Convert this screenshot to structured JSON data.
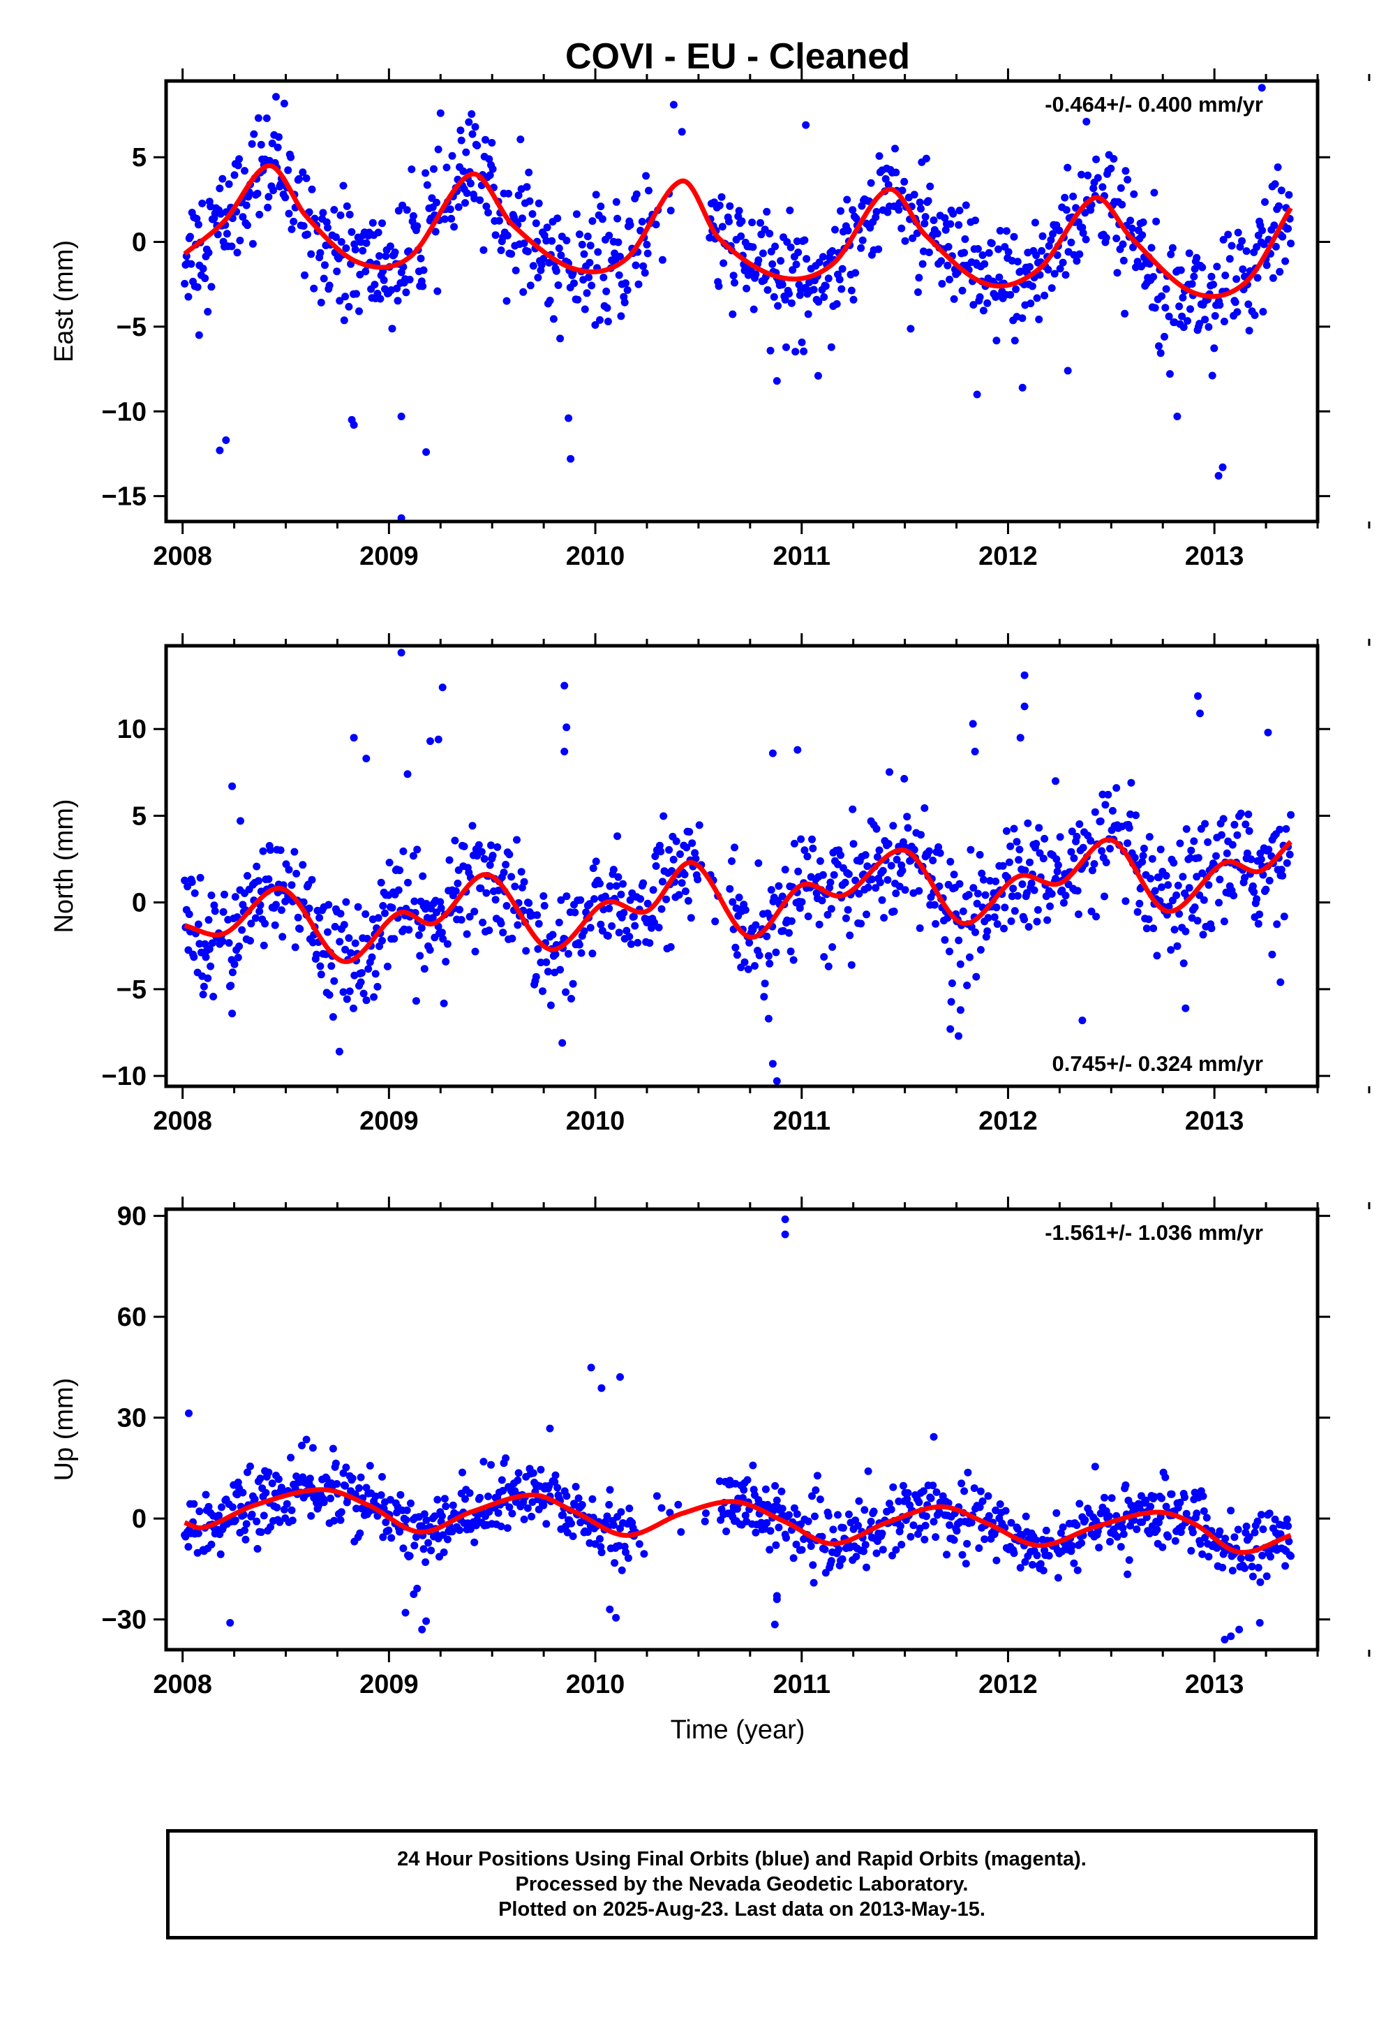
{
  "title": "COVI  - EU - Cleaned",
  "colors": {
    "points": "#0000ff",
    "fit": "#ff0000",
    "axes": "#000000"
  },
  "x_axis": {
    "label": "Time (year)",
    "range": [
      2007.92,
      2013.5
    ],
    "ticks": [
      2008,
      2009,
      2010,
      2011,
      2012,
      2013
    ]
  },
  "footer": {
    "line1": "24 Hour Positions Using Final Orbits (blue) and Rapid Orbits (magenta).",
    "line2": "Processed by the Nevada Geodetic Laboratory.",
    "line3": "Plotted on 2025-Aug-23. Last data on 2013-May-15."
  },
  "chart_data": [
    {
      "type": "scatter",
      "ylabel": "East (mm)",
      "ylim": [
        -16.5,
        9.5
      ],
      "yticks": [
        5,
        0,
        -5,
        -10,
        -15
      ],
      "rate_label": "-0.464+/- 0.400 mm/yr",
      "rate_label_position": "top-right",
      "time_range": [
        2008.01,
        2013.37
      ],
      "gap": [
        2010.28,
        2010.55
      ],
      "fit": {
        "mean": 0.8,
        "trend_mm_per_yr": -0.464,
        "knots": [
          [
            2008.0,
            -0.8
          ],
          [
            2008.2,
            1.2
          ],
          [
            2008.42,
            4.5
          ],
          [
            2008.6,
            1.5
          ],
          [
            2008.85,
            -1.2
          ],
          [
            2009.1,
            -0.9
          ],
          [
            2009.4,
            4.0
          ],
          [
            2009.6,
            1.0
          ],
          [
            2009.9,
            -1.6
          ],
          [
            2010.15,
            -1.0
          ],
          [
            2010.42,
            3.6
          ],
          [
            2010.6,
            0.2
          ],
          [
            2010.9,
            -2.1
          ],
          [
            2011.15,
            -1.3
          ],
          [
            2011.42,
            3.1
          ],
          [
            2011.6,
            0.4
          ],
          [
            2011.9,
            -2.5
          ],
          [
            2012.15,
            -1.6
          ],
          [
            2012.42,
            2.6
          ],
          [
            2012.6,
            0.2
          ],
          [
            2012.9,
            -3.0
          ],
          [
            2013.15,
            -2.4
          ],
          [
            2013.37,
            2.0
          ]
        ]
      },
      "noise_sd": 1.7,
      "outliers": [
        [
          2008.18,
          -12.3
        ],
        [
          2008.21,
          -11.7
        ],
        [
          2008.08,
          -5.5
        ],
        [
          2008.82,
          -10.5
        ],
        [
          2008.83,
          -10.8
        ],
        [
          2009.06,
          -16.3
        ],
        [
          2009.06,
          -10.3
        ],
        [
          2009.18,
          -12.4
        ],
        [
          2009.88,
          -12.8
        ],
        [
          2009.87,
          -10.4
        ],
        [
          2010.38,
          8.1
        ],
        [
          2010.42,
          6.5
        ],
        [
          2010.88,
          -8.2
        ],
        [
          2011.85,
          -9.0
        ],
        [
          2011.08,
          -7.9
        ],
        [
          2012.07,
          -8.6
        ],
        [
          2012.29,
          -7.6
        ],
        [
          2012.82,
          -10.3
        ],
        [
          2013.02,
          -13.8
        ],
        [
          2013.04,
          -13.3
        ],
        [
          2013.23,
          9.1
        ],
        [
          2012.38,
          7.1
        ],
        [
          2011.02,
          6.9
        ],
        [
          2009.25,
          7.6
        ]
      ]
    },
    {
      "type": "scatter",
      "ylabel": "North (mm)",
      "ylim": [
        -10.6,
        14.8
      ],
      "yticks": [
        10,
        5,
        0,
        -5,
        -10
      ],
      "rate_label": "0.745+/- 0.324 mm/yr",
      "rate_label_position": "bottom-right",
      "time_range": [
        2008.01,
        2013.37
      ],
      "gap": [
        2010.5,
        2010.66
      ],
      "fit": {
        "mean": 0.0,
        "trend_mm_per_yr": 0.745,
        "knots": [
          [
            2008.0,
            -1.3
          ],
          [
            2008.2,
            -1.8
          ],
          [
            2008.48,
            0.8
          ],
          [
            2008.78,
            -3.4
          ],
          [
            2009.05,
            -0.6
          ],
          [
            2009.22,
            -1.2
          ],
          [
            2009.48,
            1.6
          ],
          [
            2009.78,
            -2.7
          ],
          [
            2010.05,
            0.0
          ],
          [
            2010.25,
            -0.5
          ],
          [
            2010.47,
            2.3
          ],
          [
            2010.75,
            -2.0
          ],
          [
            2011.0,
            1.0
          ],
          [
            2011.2,
            0.4
          ],
          [
            2011.5,
            3.0
          ],
          [
            2011.78,
            -1.2
          ],
          [
            2012.05,
            1.5
          ],
          [
            2012.25,
            1.1
          ],
          [
            2012.5,
            3.6
          ],
          [
            2012.77,
            -0.5
          ],
          [
            2013.05,
            2.3
          ],
          [
            2013.22,
            1.8
          ],
          [
            2013.37,
            3.5
          ]
        ]
      },
      "noise_sd": 1.6,
      "outliers": [
        [
          2008.24,
          6.7
        ],
        [
          2008.28,
          4.7
        ],
        [
          2008.24,
          -6.4
        ],
        [
          2008.76,
          -8.6
        ],
        [
          2008.83,
          9.5
        ],
        [
          2008.89,
          8.3
        ],
        [
          2009.06,
          14.4
        ],
        [
          2009.09,
          7.4
        ],
        [
          2009.24,
          9.4
        ],
        [
          2009.26,
          12.4
        ],
        [
          2009.2,
          9.3
        ],
        [
          2009.85,
          12.5
        ],
        [
          2009.86,
          10.1
        ],
        [
          2009.85,
          8.7
        ],
        [
          2009.84,
          -8.1
        ],
        [
          2010.86,
          -9.3
        ],
        [
          2010.88,
          -10.3
        ],
        [
          2010.86,
          8.6
        ],
        [
          2010.98,
          8.8
        ],
        [
          2010.84,
          -6.7
        ],
        [
          2011.72,
          -7.3
        ],
        [
          2011.76,
          -7.7
        ],
        [
          2011.77,
          -6.2
        ],
        [
          2011.83,
          10.3
        ],
        [
          2011.84,
          8.7
        ],
        [
          2012.08,
          13.1
        ],
        [
          2012.08,
          11.3
        ],
        [
          2012.06,
          9.5
        ],
        [
          2012.36,
          -6.8
        ],
        [
          2012.86,
          -6.1
        ],
        [
          2012.92,
          11.9
        ],
        [
          2012.93,
          10.9
        ],
        [
          2013.26,
          9.8
        ],
        [
          2013.28,
          -3.0
        ],
        [
          2013.32,
          -4.6
        ],
        [
          2012.23,
          7.0
        ]
      ]
    },
    {
      "type": "scatter",
      "ylabel": "Up (mm)",
      "ylim": [
        -39,
        92
      ],
      "yticks": [
        90,
        60,
        30,
        0,
        -30
      ],
      "rate_label": "-1.561+/- 1.036 mm/yr",
      "rate_label_position": "top-right",
      "time_range": [
        2008.01,
        2013.37
      ],
      "gap": [
        2010.2,
        2010.6
      ],
      "fit": {
        "mean": 0.0,
        "trend_mm_per_yr": -1.561,
        "knots": [
          [
            2008.0,
            -1.0
          ],
          [
            2008.1,
            -2.7
          ],
          [
            2008.35,
            4.0
          ],
          [
            2008.68,
            8.6
          ],
          [
            2008.9,
            4.0
          ],
          [
            2009.15,
            -4.0
          ],
          [
            2009.4,
            2.0
          ],
          [
            2009.7,
            7.0
          ],
          [
            2009.9,
            2.0
          ],
          [
            2010.15,
            -5.0
          ],
          [
            2010.42,
            1.5
          ],
          [
            2010.68,
            5.0
          ],
          [
            2010.92,
            -1.0
          ],
          [
            2011.15,
            -7.5
          ],
          [
            2011.42,
            -1.0
          ],
          [
            2011.68,
            3.5
          ],
          [
            2011.9,
            -1.5
          ],
          [
            2012.15,
            -8.0
          ],
          [
            2012.42,
            -2.5
          ],
          [
            2012.72,
            1.9
          ],
          [
            2012.9,
            -1.5
          ],
          [
            2013.12,
            -10.0
          ],
          [
            2013.37,
            -5.0
          ]
        ]
      },
      "noise_sd": 5.0,
      "outliers": [
        [
          2008.03,
          31.3
        ],
        [
          2008.23,
          -31.0
        ],
        [
          2009.08,
          -28.0
        ],
        [
          2009.16,
          -33.0
        ],
        [
          2009.18,
          -30.5
        ],
        [
          2009.98,
          44.9
        ],
        [
          2010.03,
          38.8
        ],
        [
          2010.12,
          42.1
        ],
        [
          2010.07,
          -27.0
        ],
        [
          2010.1,
          -29.5
        ],
        [
          2010.87,
          -31.5
        ],
        [
          2010.88,
          -24.0
        ],
        [
          2010.88,
          -23.0
        ],
        [
          2010.92,
          89.0
        ],
        [
          2010.92,
          84.5
        ],
        [
          2013.05,
          -36.0
        ],
        [
          2013.08,
          -35.0
        ],
        [
          2013.12,
          -33.0
        ],
        [
          2013.22,
          -31.0
        ],
        [
          2009.12,
          -22.5
        ],
        [
          2008.6,
          23.5
        ],
        [
          2011.64,
          24.3
        ],
        [
          2009.78,
          26.8
        ]
      ]
    }
  ]
}
